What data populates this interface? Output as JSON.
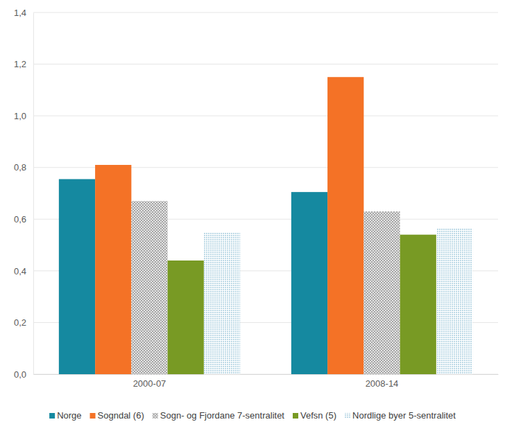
{
  "chart_data": {
    "type": "bar",
    "categories": [
      "2000-07",
      "2008-14"
    ],
    "series": [
      {
        "name": "Norge",
        "color": "#1589a0",
        "values": [
          0.755,
          0.705
        ]
      },
      {
        "name": "Sogndal (6)",
        "color": "#f47226",
        "values": [
          0.81,
          1.15
        ]
      },
      {
        "name": "Sogn- og Fjordane 7-sentralitet",
        "color": "#a6a6a6",
        "values": [
          0.67,
          0.63
        ]
      },
      {
        "name": "Vefsn (5)",
        "color": "#789a24",
        "values": [
          0.44,
          0.54
        ]
      },
      {
        "name": "Nordlige byer 5-sentralitet",
        "color": "#bcd9e6",
        "values": [
          0.55,
          0.565
        ]
      }
    ],
    "ylim": [
      0,
      1.4
    ],
    "yticks": [
      {
        "value": 0,
        "label": "0,0"
      },
      {
        "value": 0.2,
        "label": "0,2"
      },
      {
        "value": 0.4,
        "label": "0,4"
      },
      {
        "value": 0.6,
        "label": "0,6"
      },
      {
        "value": 0.8,
        "label": "0,8"
      },
      {
        "value": 1,
        "label": "1,0"
      },
      {
        "value": 1.2,
        "label": "1,2"
      },
      {
        "value": 1.4,
        "label": "1,4"
      }
    ],
    "grid": true,
    "legend": "bottom"
  }
}
